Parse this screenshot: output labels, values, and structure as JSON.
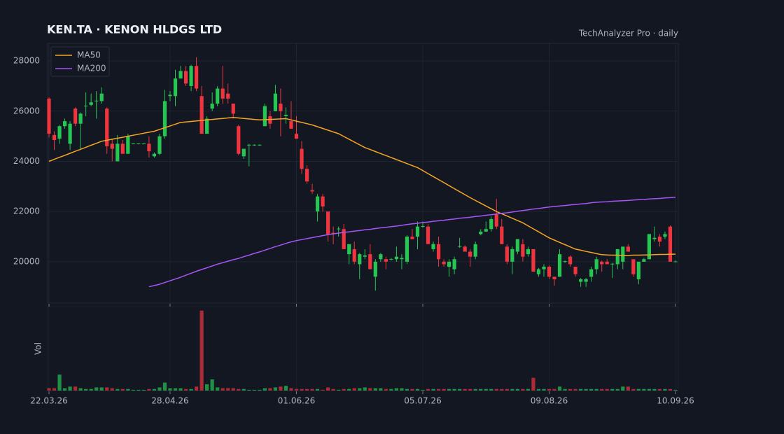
{
  "chart_data": {
    "type": "candlestick",
    "title": "KEN.TA  ·  KENON HLDGS LTD",
    "subtitle": "TechAnalyzer Pro · daily",
    "volume_label": "Vol",
    "up_color": "#26c653",
    "down_color": "#f0353f",
    "grid": true,
    "legend": "upper left",
    "ylim": [
      18350,
      28700
    ],
    "yticks": [
      20000,
      22000,
      24000,
      26000,
      28000
    ],
    "vol_ylim": [
      0,
      105
    ],
    "categories": [
      "22.03.26",
      null,
      null,
      null,
      null,
      null,
      null,
      null,
      null,
      null,
      null,
      null,
      null,
      null,
      null,
      null,
      null,
      null,
      null,
      null,
      null,
      null,
      null,
      "28.04.26",
      null,
      null,
      null,
      null,
      null,
      null,
      null,
      null,
      null,
      null,
      null,
      null,
      null,
      null,
      null,
      null,
      null,
      null,
      null,
      null,
      null,
      null,
      null,
      "01.06.26",
      null,
      null,
      null,
      null,
      null,
      null,
      null,
      null,
      null,
      null,
      null,
      null,
      null,
      null,
      null,
      null,
      null,
      null,
      null,
      null,
      null,
      null,
      null,
      "05.07.26",
      null,
      null,
      null,
      null,
      null,
      null,
      null,
      null,
      null,
      null,
      null,
      null,
      null,
      null,
      null,
      null,
      null,
      null,
      null,
      null,
      null,
      null,
      null,
      "09.08.26",
      null,
      null,
      null,
      null,
      null,
      null,
      null,
      null,
      null,
      null,
      null,
      null,
      null,
      null,
      null,
      null,
      null,
      null,
      null,
      null,
      null,
      null,
      null,
      "10.09.26"
    ],
    "ohlc": [
      [
        26500,
        26550,
        24950,
        25100
      ],
      [
        25050,
        25200,
        24450,
        24850
      ],
      [
        24900,
        25450,
        24700,
        25400
      ],
      [
        25400,
        25700,
        25300,
        25600
      ],
      [
        24700,
        25600,
        24450,
        25500
      ],
      [
        26100,
        26150,
        25400,
        25500
      ],
      [
        25500,
        25950,
        24500,
        25900
      ],
      [
        26200,
        26750,
        25800,
        26220
      ],
      [
        26250,
        26700,
        26200,
        26350
      ],
      [
        26400,
        26800,
        25700,
        26420
      ],
      [
        26400,
        26950,
        26300,
        26700
      ],
      [
        26100,
        26150,
        24300,
        24600
      ],
      [
        24700,
        24900,
        24000,
        24500
      ],
      [
        24000,
        25050,
        24000,
        24700
      ],
      [
        24700,
        24850,
        24300,
        24300
      ],
      [
        24300,
        25100,
        24300,
        25000
      ],
      [
        24700,
        24720,
        24680,
        24710
      ],
      [
        24700,
        24720,
        24680,
        24710
      ],
      [
        24700,
        24720,
        24680,
        24710
      ],
      [
        24700,
        25000,
        24150,
        24400
      ],
      [
        24200,
        24350,
        24150,
        24300
      ],
      [
        24300,
        25100,
        24250,
        25000
      ],
      [
        25000,
        26850,
        24900,
        26400
      ],
      [
        26600,
        26800,
        26400,
        26650
      ],
      [
        26600,
        27650,
        26200,
        27300
      ],
      [
        27300,
        27800,
        27300,
        27600
      ],
      [
        27600,
        27800,
        27000,
        27100
      ],
      [
        27000,
        27850,
        26800,
        27800
      ],
      [
        27800,
        28150,
        26800,
        26900
      ],
      [
        26600,
        27000,
        25100,
        25100
      ],
      [
        25100,
        25800,
        25100,
        25700
      ],
      [
        26100,
        26750,
        26000,
        26300
      ],
      [
        26300,
        27000,
        26200,
        26900
      ],
      [
        26900,
        27800,
        26300,
        26500
      ],
      [
        26700,
        27100,
        26300,
        26500
      ],
      [
        26300,
        26300,
        25700,
        25900
      ],
      [
        25400,
        25450,
        24250,
        24300
      ],
      [
        24200,
        24500,
        24100,
        24500
      ],
      [
        24650,
        24700,
        23800,
        24660
      ],
      [
        24650,
        24680,
        24630,
        24660
      ],
      [
        24650,
        24680,
        24630,
        24660
      ],
      [
        25400,
        26300,
        25400,
        26200
      ],
      [
        25800,
        26000,
        25300,
        25500
      ],
      [
        26000,
        27050,
        26000,
        26700
      ],
      [
        26300,
        26900,
        25000,
        26000
      ],
      [
        25800,
        26150,
        25500,
        25850
      ],
      [
        25600,
        26400,
        25300,
        25300
      ],
      [
        25100,
        25800,
        24900,
        24900
      ],
      [
        24500,
        24800,
        23500,
        23700
      ],
      [
        23700,
        23850,
        23100,
        23200
      ],
      [
        22850,
        23100,
        22700,
        22800
      ],
      [
        22000,
        22700,
        21600,
        22600
      ],
      [
        22600,
        22700,
        22000,
        22200
      ],
      [
        22000,
        22000,
        20800,
        21100
      ],
      [
        21150,
        21400,
        20700,
        21100
      ],
      [
        21300,
        21400,
        21000,
        21320
      ],
      [
        21300,
        21500,
        20500,
        20500
      ],
      [
        20300,
        20700,
        19900,
        20700
      ],
      [
        20500,
        20800,
        19900,
        20000
      ],
      [
        19900,
        20350,
        19300,
        20300
      ],
      [
        20200,
        20500,
        20100,
        20250
      ],
      [
        20300,
        20700,
        19700,
        19700
      ],
      [
        19400,
        20100,
        18850,
        20000
      ],
      [
        20100,
        20350,
        20000,
        20300
      ],
      [
        20100,
        20200,
        19700,
        20000
      ],
      [
        20100,
        20150,
        20050,
        20110
      ],
      [
        20100,
        20600,
        20000,
        20200
      ],
      [
        20100,
        20300,
        19700,
        20150
      ],
      [
        20000,
        21050,
        19900,
        21000
      ],
      [
        21000,
        21300,
        20900,
        20900
      ],
      [
        21000,
        21600,
        20500,
        21400
      ],
      [
        21400,
        21600,
        21350,
        21420
      ],
      [
        21400,
        21500,
        20700,
        20700
      ],
      [
        20500,
        20800,
        20400,
        20700
      ],
      [
        20700,
        21000,
        19800,
        20100
      ],
      [
        20000,
        20100,
        19800,
        19900
      ],
      [
        19800,
        20100,
        19400,
        20000
      ],
      [
        19700,
        20200,
        19500,
        20100
      ],
      [
        20600,
        20950,
        20550,
        20620
      ],
      [
        20600,
        20650,
        20400,
        20400
      ],
      [
        20400,
        20500,
        19800,
        20200
      ],
      [
        20200,
        20800,
        20100,
        20700
      ],
      [
        21100,
        21300,
        21050,
        21200
      ],
      [
        21200,
        21600,
        21200,
        21300
      ],
      [
        21300,
        21800,
        21200,
        21700
      ],
      [
        21900,
        22500,
        21300,
        21400
      ],
      [
        21400,
        21700,
        20700,
        20700
      ],
      [
        20600,
        20700,
        19900,
        20000
      ],
      [
        20000,
        20600,
        19500,
        20500
      ],
      [
        20400,
        20900,
        20300,
        20900
      ],
      [
        20700,
        20900,
        20000,
        20200
      ],
      [
        20300,
        20600,
        20200,
        20500
      ],
      [
        20500,
        20500,
        19600,
        19600
      ],
      [
        19500,
        19750,
        19400,
        19700
      ],
      [
        19700,
        19900,
        19400,
        19800
      ],
      [
        19800,
        19850,
        19300,
        19400
      ],
      [
        19400,
        19400,
        19050,
        19300
      ],
      [
        19400,
        20500,
        19400,
        20300
      ],
      [
        20000,
        20050,
        19950,
        20020
      ],
      [
        20200,
        20250,
        19800,
        19900
      ],
      [
        19800,
        19800,
        19400,
        19500
      ],
      [
        19200,
        19350,
        19000,
        19300
      ],
      [
        19200,
        19350,
        19000,
        19300
      ],
      [
        19400,
        19800,
        19200,
        19700
      ],
      [
        19700,
        20200,
        19500,
        20100
      ],
      [
        20000,
        20050,
        19600,
        19900
      ],
      [
        20000,
        20100,
        19900,
        19900
      ],
      [
        19900,
        19950,
        19350,
        19920
      ],
      [
        19900,
        20500,
        19700,
        20500
      ],
      [
        20000,
        20600,
        19700,
        20600
      ],
      [
        20600,
        20700,
        20400,
        20400
      ],
      [
        20100,
        20100,
        19400,
        19500
      ],
      [
        19300,
        20000,
        19100,
        20000
      ],
      [
        20000,
        20150,
        20000,
        20100
      ],
      [
        20100,
        21100,
        20100,
        21100
      ],
      [
        20900,
        21400,
        20800,
        20950
      ],
      [
        21000,
        21100,
        20600,
        20800
      ],
      [
        21000,
        21200,
        20900,
        21100
      ],
      [
        21400,
        21450,
        20000,
        20000
      ],
      [
        20000,
        20050,
        19980,
        20010
      ]
    ],
    "volume": [
      3,
      3,
      20,
      3,
      5,
      5,
      3,
      2,
      2,
      4,
      4,
      4,
      3,
      2,
      2,
      2,
      1,
      1,
      1,
      2,
      2,
      4,
      10,
      3,
      3,
      3,
      2,
      2,
      5,
      100,
      8,
      14,
      4,
      3,
      3,
      3,
      2,
      2,
      1,
      1,
      1,
      3,
      3,
      4,
      5,
      6,
      3,
      2,
      2,
      2,
      2,
      2,
      1,
      4,
      2,
      1,
      2,
      2,
      3,
      3,
      4,
      3,
      3,
      3,
      2,
      2,
      3,
      3,
      2,
      2,
      2,
      1,
      2,
      2,
      2,
      2,
      2,
      2,
      2,
      2,
      2,
      2,
      2,
      2,
      2,
      2,
      2,
      2,
      2,
      2,
      2,
      2,
      16,
      2,
      2,
      2,
      2,
      5,
      2,
      2,
      2,
      2,
      2,
      2,
      2,
      2,
      2,
      2,
      2,
      5,
      5,
      2,
      2,
      2,
      2,
      2,
      2,
      2,
      2,
      1
    ],
    "series": [
      {
        "name": "MA50",
        "color": "#f5a524",
        "values": [
          24000,
          24080,
          24160,
          24240,
          24320,
          24400,
          24480,
          24560,
          24640,
          24720,
          24800,
          24840,
          24880,
          24920,
          24960,
          25000,
          25040,
          25080,
          25120,
          25160,
          25200,
          25270,
          25340,
          25410,
          25480,
          25550,
          25570,
          25590,
          25610,
          25630,
          25650,
          25670,
          25690,
          25710,
          25730,
          25750,
          25730,
          25710,
          25690,
          25670,
          25650,
          25660,
          25670,
          25680,
          25690,
          25700,
          25650,
          25600,
          25550,
          25500,
          25450,
          25380,
          25310,
          25240,
          25170,
          25100,
          24990,
          24880,
          24770,
          24660,
          24550,
          24470,
          24390,
          24310,
          24230,
          24150,
          24070,
          23990,
          23910,
          23830,
          23750,
          23630,
          23510,
          23390,
          23270,
          23150,
          23030,
          22910,
          22790,
          22670,
          22550,
          22440,
          22330,
          22220,
          22110,
          22000,
          21910,
          21820,
          21730,
          21640,
          21550,
          21430,
          21310,
          21190,
          21070,
          20950,
          20860,
          20770,
          20680,
          20590,
          20500,
          20460,
          20410,
          20370,
          20320,
          20280,
          20270,
          20260,
          20260,
          20250,
          20250,
          20260,
          20260,
          20270,
          20270,
          20280,
          20290,
          20290,
          20300,
          20300
        ]
      },
      {
        "name": "MA200",
        "color": "#a855f7",
        "values": [
          null,
          null,
          null,
          null,
          null,
          null,
          null,
          null,
          null,
          null,
          null,
          null,
          null,
          null,
          null,
          null,
          null,
          null,
          null,
          19000,
          19050,
          19100,
          19170,
          19240,
          19310,
          19380,
          19460,
          19540,
          19620,
          19690,
          19760,
          19830,
          19900,
          19960,
          20020,
          20080,
          20130,
          20200,
          20260,
          20330,
          20390,
          20460,
          20530,
          20600,
          20660,
          20730,
          20790,
          20840,
          20880,
          20920,
          20960,
          21000,
          21040,
          21080,
          21110,
          21140,
          21170,
          21190,
          21220,
          21240,
          21270,
          21290,
          21320,
          21350,
          21370,
          21400,
          21420,
          21450,
          21480,
          21510,
          21530,
          21560,
          21580,
          21610,
          21630,
          21650,
          21680,
          21700,
          21730,
          21750,
          21770,
          21800,
          21820,
          21850,
          21870,
          21900,
          21930,
          21950,
          21980,
          22010,
          22040,
          22070,
          22100,
          22120,
          22150,
          22180,
          22200,
          22220,
          22240,
          22260,
          22280,
          22300,
          22320,
          22350,
          22370,
          22380,
          22390,
          22410,
          22420,
          22430,
          22440,
          22460,
          22470,
          22480,
          22500,
          22510,
          22520,
          22540,
          22550,
          22570
        ]
      }
    ]
  }
}
